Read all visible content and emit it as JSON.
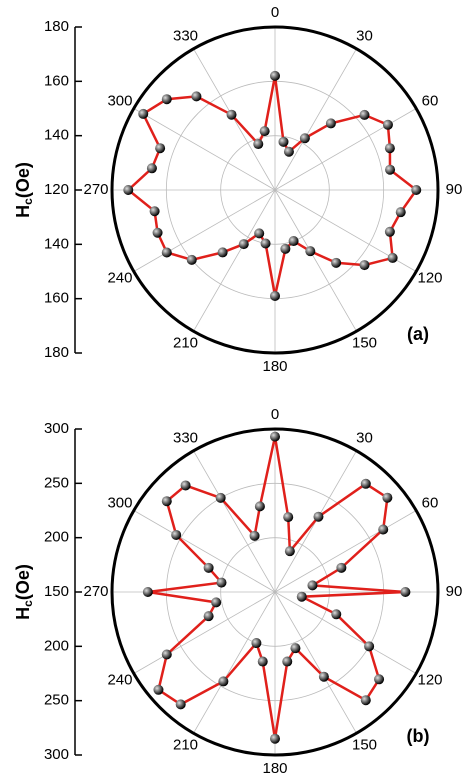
{
  "chart_data": [
    {
      "type": "polar",
      "annotation": "(a)",
      "ylabel_main": "H",
      "ylabel_sub": "c",
      "ylabel_unit": "(Oe)",
      "ylim": [
        120,
        180
      ],
      "yticks": [
        120,
        140,
        160,
        180
      ],
      "xticks": [
        0,
        30,
        60,
        90,
        120,
        150,
        180,
        210,
        240,
        270,
        300,
        330
      ],
      "x": [
        0,
        10,
        20,
        30,
        40,
        50,
        60,
        70,
        80,
        90,
        100,
        110,
        120,
        130,
        140,
        150,
        160,
        170,
        180,
        190,
        200,
        210,
        220,
        230,
        240,
        250,
        260,
        270,
        280,
        290,
        300,
        310,
        320,
        330,
        340,
        350
      ],
      "values": [
        162,
        138,
        135,
        142,
        152,
        163,
        168,
        165,
        163,
        172,
        167,
        165,
        170,
        163,
        155,
        146,
        140,
        142,
        159,
        140,
        137,
        143,
        150,
        160,
        166,
        166,
        165,
        174,
        166,
        165,
        176,
        172,
        165,
        152,
        138,
        142
      ],
      "line_color": "#e0201b",
      "marker_color": "#000000",
      "grid": true
    },
    {
      "type": "polar",
      "annotation": "(b)",
      "ylabel_main": "H",
      "ylabel_sub": "c",
      "ylabel_unit": "(Oe)",
      "ylim": [
        150,
        300
      ],
      "yticks": [
        150,
        200,
        250,
        300
      ],
      "xticks": [
        0,
        30,
        60,
        90,
        120,
        150,
        180,
        210,
        240,
        270,
        300,
        330
      ],
      "x": [
        0,
        10,
        20,
        30,
        40,
        50,
        60,
        70,
        80,
        90,
        100,
        110,
        120,
        130,
        140,
        150,
        160,
        170,
        180,
        190,
        200,
        210,
        220,
        230,
        240,
        250,
        260,
        270,
        280,
        290,
        300,
        310,
        320,
        330,
        340,
        350
      ],
      "values": [
        293,
        220,
        190,
        230,
        280,
        285,
        265,
        215,
        185,
        270,
        175,
        210,
        250,
        275,
        280,
        240,
        205,
        215,
        285,
        215,
        200,
        245,
        285,
        290,
        265,
        215,
        205,
        267,
        200,
        215,
        255,
        280,
        278,
        250,
        205,
        230
      ],
      "line_color": "#e0201b",
      "marker_color": "#000000",
      "grid": true
    }
  ]
}
